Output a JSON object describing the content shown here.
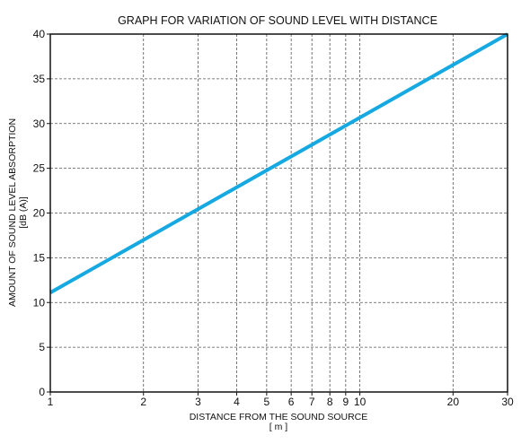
{
  "chart_data": {
    "type": "line",
    "title": "GRAPH FOR VARIATION OF SOUND LEVEL WITH DISTANCE",
    "xlabel": "DISTANCE FROM THE SOUND SOURCE",
    "xlabel_unit": "[ m ]",
    "ylabel": "AMOUNT OF SOUND LEVEL ABSORPTION",
    "ylabel_unit": "[dB (A)]",
    "x_scale": "log",
    "xlim": [
      1,
      30
    ],
    "ylim": [
      0,
      40
    ],
    "x_ticks": [
      1,
      2,
      3,
      4,
      5,
      6,
      7,
      8,
      9,
      10,
      20,
      30
    ],
    "x_tick_labels": [
      "1",
      "2",
      "3",
      "4",
      "5",
      "6",
      "7",
      "8",
      "9",
      "10",
      "20",
      "30"
    ],
    "y_ticks": [
      0,
      5,
      10,
      15,
      20,
      25,
      30,
      35,
      40
    ],
    "y_tick_labels": [
      "0",
      "5",
      "10",
      "15",
      "20",
      "25",
      "30",
      "35",
      "40"
    ],
    "grid": true,
    "series": [
      {
        "x": [
          1,
          30
        ],
        "y": [
          11.1,
          40
        ],
        "color": "#16a9e1"
      }
    ]
  }
}
